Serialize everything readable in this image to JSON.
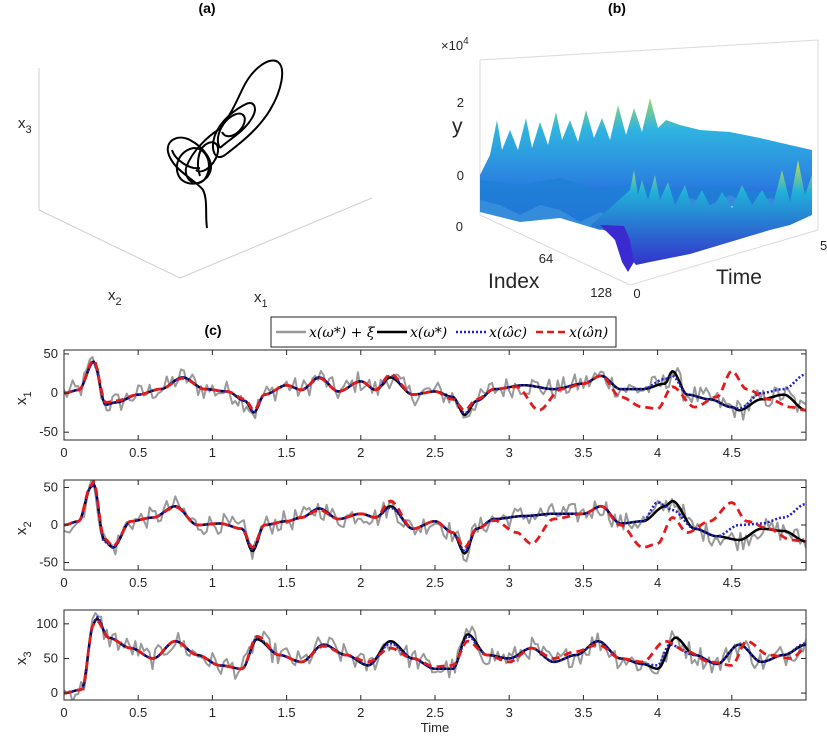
{
  "colors": {
    "noisy": "#999999",
    "true": "#000000",
    "c_est": "#1f1fcc",
    "n_est": "#e31a1c",
    "surface_low": "#2a2ad9",
    "surface_mid": "#1fa0e0",
    "surface_high": "#c8e04a"
  },
  "panels": {
    "a": {
      "label": "(a)",
      "xlabel": "x_1",
      "ylabel": "x_2",
      "zlabel": "x_3"
    },
    "b": {
      "label": "(b)",
      "scale_text": "×10",
      "scale_exp": "4",
      "zlabel": "y",
      "xlabel": "Index",
      "ylabel": "Time",
      "zticks": [
        "2",
        "0"
      ],
      "index_ticks": [
        "0",
        "64",
        "128"
      ],
      "time_ticks": [
        "0",
        "5"
      ]
    },
    "c": {
      "label": "(c)"
    }
  },
  "legend": {
    "entries": [
      {
        "label": "x(ω*) + ξ",
        "style": "noisy"
      },
      {
        "label": "x(ω*)",
        "style": "true"
      },
      {
        "label": "x(ω̂c)",
        "style": "c_est"
      },
      {
        "label": "x(ω̂n)",
        "style": "n_est"
      }
    ]
  },
  "chart_data": [
    {
      "type": "line",
      "panel": "c-x1",
      "ylabel": "x_1",
      "xlim": [
        0,
        5
      ],
      "ylim": [
        -60,
        55
      ],
      "yticks": [
        -50,
        0,
        50
      ],
      "xticks": [
        0,
        0.5,
        1,
        1.5,
        2,
        2.5,
        3,
        3.5,
        4,
        4.5
      ],
      "series": [
        {
          "name": "x(ω*)",
          "style": "true",
          "x": [
            0,
            0.1,
            0.2,
            0.28,
            0.35,
            0.5,
            0.65,
            0.8,
            0.95,
            1.1,
            1.22,
            1.28,
            1.35,
            1.5,
            1.6,
            1.72,
            1.85,
            2.0,
            2.1,
            2.2,
            2.35,
            2.5,
            2.62,
            2.7,
            2.78,
            2.9,
            3.1,
            3.3,
            3.5,
            3.62,
            3.75,
            3.9,
            4.05,
            4.1,
            4.2,
            4.35,
            4.5,
            4.55,
            4.7,
            4.85,
            5.0
          ],
          "y": [
            0,
            4,
            40,
            -15,
            -12,
            -2,
            5,
            20,
            5,
            2,
            -10,
            -25,
            -2,
            10,
            4,
            20,
            2,
            15,
            4,
            20,
            -2,
            2,
            -5,
            -28,
            -10,
            5,
            10,
            5,
            12,
            22,
            5,
            5,
            12,
            28,
            -2,
            -8,
            -18,
            -22,
            -8,
            -2,
            -22
          ]
        },
        {
          "name": "x(ω̂c)",
          "style": "c_est",
          "x": [
            0,
            0.1,
            0.2,
            0.28,
            0.35,
            0.5,
            0.65,
            0.8,
            0.95,
            1.1,
            1.22,
            1.28,
            1.35,
            1.5,
            1.6,
            1.72,
            1.85,
            2.0,
            2.1,
            2.2,
            2.35,
            2.5,
            2.62,
            2.7,
            2.78,
            2.9,
            3.1,
            3.3,
            3.5,
            3.62,
            3.75,
            3.9,
            4.05,
            4.1,
            4.2,
            4.35,
            4.5,
            4.55,
            4.7,
            4.85,
            5.0
          ],
          "y": [
            0,
            4,
            40,
            -15,
            -12,
            -2,
            5,
            20,
            5,
            2,
            -10,
            -25,
            -2,
            10,
            4,
            20,
            2,
            15,
            4,
            22,
            -2,
            2,
            -5,
            -26,
            -10,
            5,
            10,
            5,
            12,
            22,
            5,
            5,
            18,
            22,
            -2,
            -8,
            -18,
            -20,
            0,
            5,
            24
          ]
        },
        {
          "name": "x(ω̂n)",
          "style": "n_est",
          "x": [
            0,
            0.1,
            0.2,
            0.28,
            0.35,
            0.5,
            0.65,
            0.8,
            0.95,
            1.1,
            1.22,
            1.28,
            1.35,
            1.5,
            1.6,
            1.72,
            1.85,
            2.0,
            2.1,
            2.2,
            2.35,
            2.5,
            2.62,
            2.7,
            2.78,
            2.9,
            3.05,
            3.2,
            3.35,
            3.5,
            3.62,
            3.75,
            3.9,
            4.0,
            4.1,
            4.25,
            4.4,
            4.5,
            4.6,
            4.75,
            4.9,
            5.0
          ],
          "y": [
            0,
            4,
            42,
            -12,
            -10,
            -2,
            5,
            19,
            5,
            2,
            -8,
            -22,
            -2,
            10,
            4,
            19,
            2,
            15,
            4,
            24,
            -2,
            2,
            -8,
            -22,
            -8,
            5,
            8,
            -22,
            5,
            12,
            22,
            -5,
            -18,
            -20,
            8,
            -18,
            -5,
            28,
            5,
            -8,
            -18,
            -22
          ]
        },
        {
          "name": "x(ω*) + ξ",
          "style": "noisy",
          "noise_amplitude": 14
        }
      ]
    },
    {
      "type": "line",
      "panel": "c-x2",
      "ylabel": "x_2",
      "xlim": [
        0,
        5
      ],
      "ylim": [
        -60,
        60
      ],
      "yticks": [
        -50,
        0,
        50
      ],
      "xticks": [
        0,
        0.5,
        1,
        1.5,
        2,
        2.5,
        3,
        3.5,
        4,
        4.5
      ],
      "series": [
        {
          "name": "x(ω*)",
          "style": "true",
          "x": [
            0,
            0.1,
            0.18,
            0.2,
            0.27,
            0.33,
            0.45,
            0.6,
            0.75,
            0.9,
            1.05,
            1.2,
            1.27,
            1.35,
            1.5,
            1.6,
            1.72,
            1.85,
            2.0,
            2.1,
            2.2,
            2.35,
            2.5,
            2.62,
            2.7,
            2.78,
            2.9,
            3.1,
            3.3,
            3.5,
            3.62,
            3.75,
            3.9,
            4.05,
            4.1,
            4.25,
            4.4,
            4.55,
            4.7,
            4.85,
            5.0
          ],
          "y": [
            0,
            5,
            50,
            55,
            -20,
            -30,
            5,
            10,
            25,
            0,
            2,
            -5,
            -35,
            0,
            5,
            10,
            22,
            8,
            15,
            10,
            25,
            -5,
            5,
            -10,
            -38,
            -5,
            8,
            12,
            15,
            15,
            25,
            2,
            5,
            25,
            32,
            -5,
            -15,
            -20,
            -5,
            -8,
            -22
          ]
        },
        {
          "name": "x(ω̂c)",
          "style": "c_est",
          "x": [
            0,
            0.1,
            0.18,
            0.2,
            0.27,
            0.33,
            0.45,
            0.6,
            0.75,
            0.9,
            1.05,
            1.2,
            1.27,
            1.35,
            1.5,
            1.6,
            1.72,
            1.85,
            2.0,
            2.1,
            2.2,
            2.35,
            2.5,
            2.62,
            2.7,
            2.78,
            2.9,
            3.1,
            3.3,
            3.5,
            3.62,
            3.75,
            3.9,
            4.0,
            4.1,
            4.25,
            4.4,
            4.55,
            4.7,
            4.85,
            5.0
          ],
          "y": [
            0,
            5,
            50,
            55,
            -22,
            -30,
            5,
            10,
            25,
            0,
            2,
            -5,
            -33,
            0,
            5,
            10,
            22,
            8,
            15,
            10,
            23,
            -5,
            5,
            -10,
            -35,
            -5,
            8,
            12,
            15,
            15,
            25,
            2,
            5,
            30,
            20,
            -5,
            -15,
            0,
            2,
            10,
            28
          ]
        },
        {
          "name": "x(ω̂n)",
          "style": "n_est",
          "x": [
            0,
            0.1,
            0.18,
            0.2,
            0.27,
            0.33,
            0.45,
            0.6,
            0.75,
            0.9,
            1.05,
            1.2,
            1.27,
            1.35,
            1.5,
            1.6,
            1.72,
            1.85,
            2.0,
            2.1,
            2.2,
            2.35,
            2.5,
            2.62,
            2.7,
            2.78,
            2.9,
            3.05,
            3.15,
            3.3,
            3.5,
            3.62,
            3.75,
            3.9,
            4.0,
            4.1,
            4.2,
            4.35,
            4.5,
            4.6,
            4.75,
            4.9,
            5.0
          ],
          "y": [
            0,
            5,
            52,
            58,
            -18,
            -28,
            5,
            10,
            24,
            0,
            2,
            -5,
            -30,
            0,
            5,
            10,
            20,
            8,
            15,
            10,
            32,
            -5,
            5,
            -10,
            -30,
            -5,
            6,
            -10,
            -25,
            8,
            15,
            25,
            0,
            -30,
            -25,
            10,
            -10,
            5,
            30,
            5,
            -5,
            -20,
            -22
          ]
        },
        {
          "name": "x(ω*) + ξ",
          "style": "noisy",
          "noise_amplitude": 14
        }
      ]
    },
    {
      "type": "line",
      "panel": "c-x3",
      "ylabel": "x_3",
      "xlabel": "Time",
      "xlim": [
        0,
        5
      ],
      "ylim": [
        -10,
        120
      ],
      "yticks": [
        0,
        50,
        100
      ],
      "xticks": [
        0,
        0.5,
        1,
        1.5,
        2,
        2.5,
        3,
        3.5,
        4,
        4.5
      ],
      "series": [
        {
          "name": "x(ω*)",
          "style": "true",
          "x": [
            0,
            0.12,
            0.2,
            0.22,
            0.3,
            0.45,
            0.6,
            0.75,
            0.9,
            1.05,
            1.2,
            1.3,
            1.45,
            1.6,
            1.75,
            1.9,
            2.05,
            2.2,
            2.35,
            2.5,
            2.62,
            2.72,
            2.85,
            3.0,
            3.15,
            3.3,
            3.45,
            3.6,
            3.75,
            3.9,
            4.0,
            4.12,
            4.25,
            4.4,
            4.55,
            4.7,
            4.85,
            5.0
          ],
          "y": [
            0,
            5,
            100,
            108,
            80,
            65,
            50,
            75,
            55,
            40,
            35,
            78,
            55,
            45,
            70,
            55,
            40,
            75,
            50,
            35,
            35,
            85,
            55,
            50,
            65,
            45,
            55,
            75,
            50,
            42,
            35,
            80,
            55,
            42,
            70,
            45,
            55,
            70
          ]
        },
        {
          "name": "x(ω̂c)",
          "style": "c_est",
          "x": [
            0,
            0.12,
            0.2,
            0.22,
            0.3,
            0.45,
            0.6,
            0.75,
            0.9,
            1.05,
            1.2,
            1.3,
            1.45,
            1.6,
            1.75,
            1.9,
            2.05,
            2.2,
            2.35,
            2.5,
            2.62,
            2.72,
            2.85,
            3.0,
            3.15,
            3.3,
            3.45,
            3.6,
            3.75,
            3.9,
            4.0,
            4.08,
            4.25,
            4.4,
            4.55,
            4.7,
            4.85,
            5.0
          ],
          "y": [
            0,
            5,
            100,
            110,
            80,
            65,
            50,
            75,
            55,
            40,
            35,
            80,
            55,
            45,
            70,
            55,
            40,
            72,
            50,
            35,
            35,
            82,
            55,
            50,
            65,
            45,
            55,
            75,
            50,
            42,
            40,
            70,
            55,
            42,
            70,
            45,
            55,
            72
          ]
        },
        {
          "name": "x(ω̂n)",
          "style": "n_est",
          "x": [
            0,
            0.12,
            0.2,
            0.22,
            0.3,
            0.45,
            0.6,
            0.75,
            0.9,
            1.05,
            1.2,
            1.3,
            1.45,
            1.6,
            1.75,
            1.9,
            2.05,
            2.2,
            2.35,
            2.5,
            2.62,
            2.72,
            2.85,
            3.0,
            3.15,
            3.3,
            3.45,
            3.6,
            3.75,
            3.9,
            4.05,
            4.2,
            4.35,
            4.5,
            4.6,
            4.75,
            4.9,
            5.0
          ],
          "y": [
            0,
            5,
            100,
            105,
            80,
            65,
            50,
            75,
            55,
            40,
            35,
            82,
            55,
            45,
            68,
            55,
            45,
            65,
            50,
            38,
            40,
            75,
            55,
            45,
            65,
            50,
            60,
            70,
            50,
            45,
            75,
            60,
            45,
            40,
            75,
            55,
            50,
            65
          ]
        },
        {
          "name": "x(ω*) + ξ",
          "style": "noisy",
          "noise_amplitude": 16
        }
      ]
    }
  ]
}
